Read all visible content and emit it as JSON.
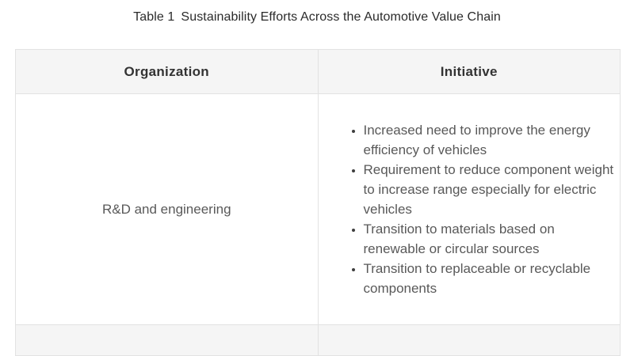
{
  "caption": {
    "label": "Table 1",
    "title": "Sustainability Efforts Across the Automotive Value Chain"
  },
  "table": {
    "headers": {
      "organization": "Organization",
      "initiative": "Initiative"
    },
    "rows": [
      {
        "organization": "R&D and engineering",
        "initiatives": [
          "Increased need to improve the energy efficiency of vehicles",
          "Requirement to reduce component weight to increase range especially for electric vehicles",
          "Transition to materials based on renewable or circular sources",
          "Transition to replaceable or recyclable components"
        ]
      }
    ],
    "next_row_partially_visible": true
  },
  "colors": {
    "page_background": "#ffffff",
    "header_row_background": "#f5f5f5",
    "stripe_row_background": "#f5f5f5",
    "border": "#e2e2e2",
    "caption_text": "#2b2b2b",
    "header_text": "#333333",
    "body_text": "#595959",
    "bullet_marker": "#3e3e3e"
  }
}
